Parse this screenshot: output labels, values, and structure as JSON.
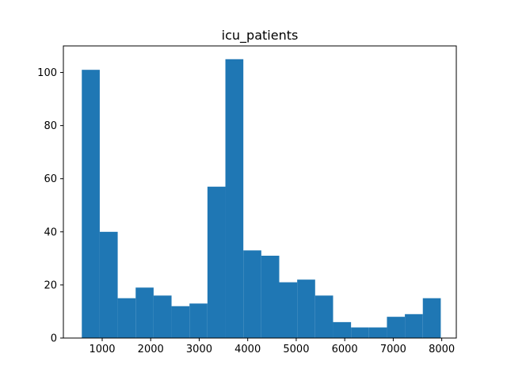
{
  "chart_data": {
    "type": "bar",
    "title": "icu_patients",
    "xlabel": "",
    "ylabel": "",
    "xlim": [
      200,
      8300
    ],
    "ylim": [
      0,
      110
    ],
    "x_ticks": [
      "1000",
      "2000",
      "3000",
      "4000",
      "5000",
      "6000",
      "7000",
      "8000"
    ],
    "y_ticks": [
      "0",
      "20",
      "40",
      "60",
      "80",
      "100"
    ],
    "grid": false,
    "bar_color": "#1f77b4",
    "bins": [
      {
        "start": 580,
        "end": 950,
        "count": 101
      },
      {
        "start": 950,
        "end": 1320,
        "count": 40
      },
      {
        "start": 1320,
        "end": 1690,
        "count": 15
      },
      {
        "start": 1690,
        "end": 2060,
        "count": 19
      },
      {
        "start": 2060,
        "end": 2430,
        "count": 16
      },
      {
        "start": 2430,
        "end": 2800,
        "count": 12
      },
      {
        "start": 2800,
        "end": 3170,
        "count": 13
      },
      {
        "start": 3170,
        "end": 3540,
        "count": 57
      },
      {
        "start": 3540,
        "end": 3910,
        "count": 105
      },
      {
        "start": 3910,
        "end": 4280,
        "count": 33
      },
      {
        "start": 4280,
        "end": 4650,
        "count": 31
      },
      {
        "start": 4650,
        "end": 5020,
        "count": 21
      },
      {
        "start": 5020,
        "end": 5390,
        "count": 22
      },
      {
        "start": 5390,
        "end": 5760,
        "count": 16
      },
      {
        "start": 5760,
        "end": 6130,
        "count": 6
      },
      {
        "start": 6130,
        "end": 6500,
        "count": 4
      },
      {
        "start": 6500,
        "end": 6870,
        "count": 4
      },
      {
        "start": 6870,
        "end": 7240,
        "count": 8
      },
      {
        "start": 7240,
        "end": 7610,
        "count": 9
      },
      {
        "start": 7610,
        "end": 7980,
        "count": 15
      }
    ]
  }
}
